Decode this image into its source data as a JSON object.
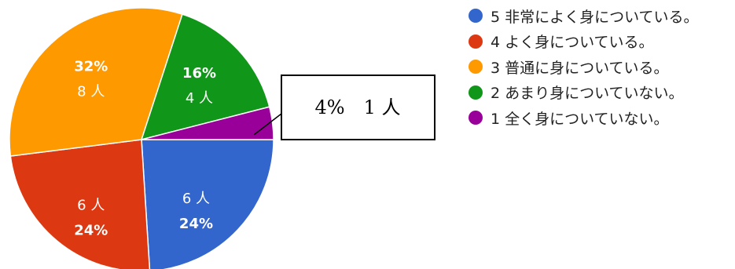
{
  "chart_data": {
    "type": "pie",
    "slices": [
      {
        "legend": "5 非常によく身についている。",
        "count_label": "6 人",
        "percent_label": "24%",
        "value": 24,
        "color": "#3366cc"
      },
      {
        "legend": "4 よく身についている。",
        "count_label": "6 人",
        "percent_label": "24%",
        "value": 24,
        "color": "#dc3912"
      },
      {
        "legend": "3 普通に身についている。",
        "count_label": "8 人",
        "percent_label": "32%",
        "value": 32,
        "color": "#ff9900"
      },
      {
        "legend": "2 あまり身についていない。",
        "count_label": "4 人",
        "percent_label": "16%",
        "value": 16,
        "color": "#109618"
      },
      {
        "legend": "1 全く身についていない。",
        "count_label": "",
        "percent_label": "",
        "value": 4,
        "color": "#990099"
      }
    ],
    "callout": "4%　1 人",
    "legend_position": "right"
  }
}
